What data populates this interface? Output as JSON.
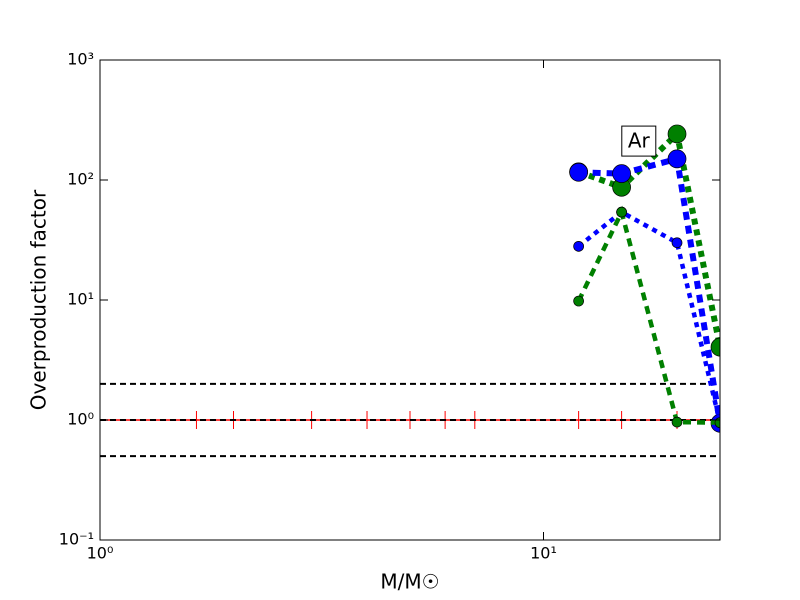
{
  "chart_data": {
    "type": "line",
    "xlabel": "M/M☉",
    "ylabel": "Overproduction factor",
    "log_x": true,
    "log_y": true,
    "xlim": [
      1,
      25
    ],
    "ylim": [
      0.1,
      1000
    ],
    "xticks": [
      {
        "value": 1,
        "label": "10⁰"
      },
      {
        "value": 10,
        "label": "10¹"
      }
    ],
    "yticks": [
      {
        "value": 0.1,
        "label": "10⁻¹"
      },
      {
        "value": 1,
        "label": "10⁰"
      },
      {
        "value": 10,
        "label": "10¹"
      },
      {
        "value": 100,
        "label": "10²"
      },
      {
        "value": 1000,
        "label": "10³"
      }
    ],
    "hlines": {
      "color": "#000000",
      "values": [
        2,
        1,
        0.5
      ]
    },
    "reference": {
      "color": "#ff0000",
      "y": 1,
      "x": [
        1.65,
        2,
        3,
        4,
        5,
        6,
        7,
        12,
        15,
        20,
        25
      ]
    },
    "series": [
      {
        "color": "#008000",
        "size": "large",
        "x": [
          12,
          15,
          20,
          25
        ],
        "values": [
          117,
          87,
          242,
          4.05
        ]
      },
      {
        "color": "#0000ff",
        "size": "large",
        "x": [
          12,
          15,
          20,
          25
        ],
        "values": [
          116,
          113,
          150,
          0.94
        ]
      },
      {
        "color": "#0000ff",
        "size": "small",
        "x": [
          12,
          15,
          20,
          25
        ],
        "values": [
          28,
          54,
          30,
          0.95
        ]
      },
      {
        "color": "#008000",
        "size": "small",
        "x": [
          12,
          15,
          20,
          25
        ],
        "values": [
          9.8,
          54,
          0.96,
          0.95
        ]
      }
    ],
    "annotation": {
      "text": "Ar",
      "x": 16.4,
      "y": 211
    }
  }
}
